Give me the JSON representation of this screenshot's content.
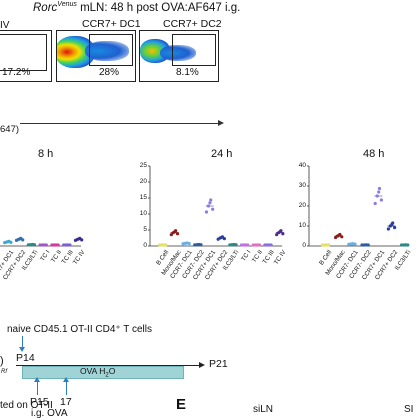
{
  "panel_top": {
    "title_gene": "Rorc",
    "title_sup": "Venus",
    "title_rest": " mLN: 48 h post OVA:AF647 i.g.",
    "left_label": "IV",
    "x_axis_label": "647)",
    "plots": [
      {
        "label": "",
        "pct": "17.2%"
      },
      {
        "label": "CCR7+ DC1",
        "pct": "28%"
      },
      {
        "label": "CCR7+ DC2",
        "pct": "8.1%"
      }
    ]
  },
  "chart_data": [
    {
      "type": "scatter",
      "title": "8 h",
      "categories": [
        "CCR7+ DC1",
        "CCR7+ DC2",
        "ILC3/LTi",
        "TC I",
        "TC II",
        "TC III",
        "TC IV"
      ],
      "values": [
        1.5,
        2.5,
        0.5,
        0.2,
        0.3,
        0.2,
        2.5
      ],
      "colors": [
        "#3fa7d6",
        "#2f6fb0",
        "#2a8a8a",
        "#9a59c6",
        "#d23b9a",
        "#7f5fd0",
        "#3a2d8f"
      ]
    },
    {
      "type": "scatter",
      "title": "24 h",
      "categories": [
        "B Cell",
        "Mono/Mac",
        "CCR7- DC1",
        "CCR7- DC2",
        "CCR7+ DC1",
        "CCR7+ DC2",
        "ILC3/LTi",
        "TC I",
        "TC II",
        "TC III",
        "TC IV"
      ],
      "values": [
        0.2,
        5,
        1,
        0.5,
        15,
        3,
        0.5,
        0.2,
        0.3,
        0.2,
        5
      ],
      "colors": [
        "#e6e066",
        "#8a1c1c",
        "#6bb0e0",
        "#2b5ea0",
        "#8e7be0",
        "#2b3ea0",
        "#2a8a8a",
        "#c070e0",
        "#e070c0",
        "#8b6fe0",
        "#4a2d8f"
      ]
    },
    {
      "type": "scatter",
      "title": "48 h",
      "categories": [
        "B Cell",
        "Mono/Mac",
        "CCR7- DC1",
        "CCR7- DC2",
        "CCR7+ DC1",
        "CCR7+ DC2",
        "ILC3/LTi"
      ],
      "values": [
        0.3,
        5,
        1,
        0.5,
        25,
        10,
        0.5
      ],
      "colors": [
        "#e6e066",
        "#8a1c1c",
        "#6bb0e0",
        "#2b5ea0",
        "#8e7be0",
        "#2b3ea0",
        "#2a8a8a"
      ]
    }
  ],
  "y_ticks_24h": [
    "25",
    "20",
    "15",
    "10",
    "5",
    "0"
  ],
  "y_ticks_48h": [
    "40",
    "30",
    "20",
    "10",
    "0"
  ],
  "panel_timeline": {
    "naive_label": "naive CD45.1 OT-II CD4⁺ T cells",
    "p14": "P14",
    "p21": "P21",
    "ova_label": "OVA H",
    "ova_sub": "2",
    "ova_tail": "O",
    "p15": "P15",
    "day17": "17",
    "ig_ova": "i.g. OVA",
    "rtf": "Rf",
    "gated": "ted on OT-II"
  },
  "panel_e": {
    "letter": "E",
    "sub_left": "siLN",
    "sub_right": "SI"
  }
}
